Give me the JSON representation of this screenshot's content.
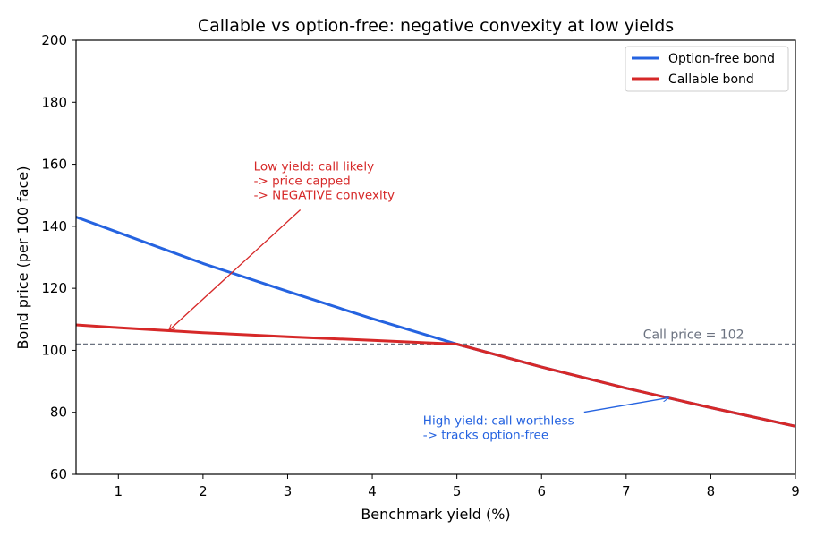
{
  "chart_data": {
    "type": "line",
    "title": "Callable vs option-free: negative convexity at low yields",
    "xlabel": "Benchmark yield (%)",
    "ylabel": "Bond price (per 100 face)",
    "xlim": [
      0.5,
      9
    ],
    "ylim": [
      60,
      200
    ],
    "xticks": [
      1,
      2,
      3,
      4,
      5,
      6,
      7,
      8,
      9
    ],
    "yticks": [
      60,
      80,
      100,
      120,
      140,
      160,
      180,
      200
    ],
    "grid": false,
    "legend_position": "top-right",
    "series": [
      {
        "name": "Option-free bond",
        "color": "#2563e0",
        "x": [
          0.5,
          1,
          2,
          3,
          4,
          5,
          6,
          7,
          8,
          9
        ],
        "y": [
          143.0,
          138.0,
          128.0,
          119.0,
          110.2,
          102.0,
          94.6,
          87.8,
          81.5,
          75.5
        ]
      },
      {
        "name": "Callable bond",
        "color": "#d62828",
        "x": [
          0.5,
          1,
          2,
          3,
          4,
          5,
          6,
          7,
          8,
          9
        ],
        "y": [
          108.2,
          107.3,
          105.7,
          104.4,
          103.2,
          102.0,
          94.6,
          87.8,
          81.5,
          75.5
        ]
      }
    ],
    "reference_line": {
      "y": 102,
      "label": "Call price = 102",
      "color": "#6b7280"
    },
    "annotations": [
      {
        "lines": [
          "Low yield: call likely",
          "-> price capped",
          "-> NEGATIVE convexity"
        ],
        "color": "#d62828",
        "text_x": 2.6,
        "text_y": 158,
        "arrow_to_x": 1.6,
        "arrow_to_y": 106.5
      },
      {
        "lines": [
          "High yield: call worthless",
          "-> tracks option-free"
        ],
        "color": "#2563e0",
        "text_x": 4.6,
        "text_y": 76,
        "arrow_to_x": 7.5,
        "arrow_to_y": 84.7
      }
    ]
  }
}
